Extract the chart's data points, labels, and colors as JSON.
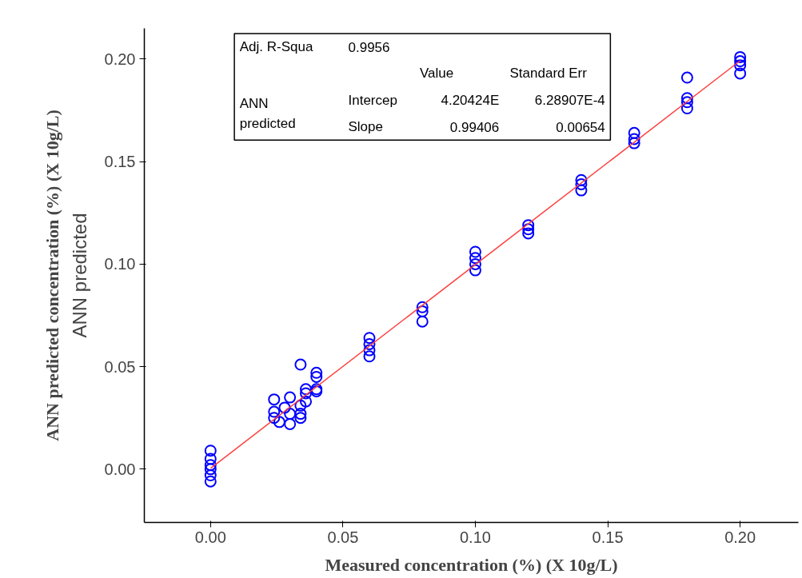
{
  "chart_data": {
    "type": "scatter",
    "xlabel": "Measured concentration (%) (X 10g/L)",
    "ylabel": "ANN predicted",
    "xlim": [
      -0.025,
      0.222
    ],
    "ylim": [
      -0.026,
      0.215
    ],
    "xticks": [
      {
        "value": 0,
        "label": "0.00"
      },
      {
        "value": 0.05,
        "label": "0.05"
      },
      {
        "value": 0.1,
        "label": "0.10"
      },
      {
        "value": 0.15,
        "label": "0.15"
      },
      {
        "value": 0.2,
        "label": "0.20"
      }
    ],
    "yticks": [
      {
        "value": 0,
        "label": "0.00"
      },
      {
        "value": 0.05,
        "label": "0.05"
      },
      {
        "value": 0.1,
        "label": "0.10"
      },
      {
        "value": 0.15,
        "label": "0.15"
      },
      {
        "value": 0.2,
        "label": "0.20"
      }
    ],
    "grid": false,
    "series": [
      {
        "marker": "circle",
        "color": "#0000ff",
        "x": [
          0,
          0,
          0,
          0,
          0,
          0,
          0.024,
          0.024,
          0.024,
          0.026,
          0.028,
          0.03,
          0.03,
          0.03,
          0.034,
          0.034,
          0.034,
          0.034,
          0.036,
          0.036,
          0.036,
          0.04,
          0.04,
          0.04,
          0.04,
          0.06,
          0.06,
          0.06,
          0.06,
          0.08,
          0.08,
          0.08,
          0.1,
          0.1,
          0.1,
          0.1,
          0.12,
          0.12,
          0.12,
          0.14,
          0.14,
          0.14,
          0.16,
          0.16,
          0.16,
          0.18,
          0.18,
          0.18,
          0.18,
          0.2,
          0.2,
          0.2,
          0.2
        ],
        "values": [
          0.009,
          0.005,
          0.002,
          0.0,
          -0.003,
          -0.006,
          0.034,
          0.028,
          0.025,
          0.023,
          0.03,
          0.035,
          0.027,
          0.022,
          0.031,
          0.027,
          0.025,
          0.051,
          0.039,
          0.037,
          0.033,
          0.047,
          0.045,
          0.039,
          0.038,
          0.064,
          0.061,
          0.058,
          0.055,
          0.079,
          0.077,
          0.072,
          0.106,
          0.103,
          0.1,
          0.097,
          0.119,
          0.117,
          0.115,
          0.141,
          0.139,
          0.136,
          0.164,
          0.161,
          0.159,
          0.191,
          0.181,
          0.179,
          0.176,
          0.201,
          0.199,
          0.197,
          0.193
        ]
      },
      {
        "type": "line",
        "marker": "none",
        "color": "#ff4040",
        "x": [
          0,
          0.2
        ],
        "values": [
          0.0004,
          0.1992
        ]
      }
    ],
    "annotations": [
      "ANN predicted concentration (%) (X 10g/L)",
      "Adj. R-Squa",
      "0.9956",
      "Value",
      "Standard Err",
      "ANN predicted",
      "Intercep",
      "4.20424E",
      "6.28907E-4",
      "Slope",
      "0.99406",
      "0.00654"
    ]
  }
}
